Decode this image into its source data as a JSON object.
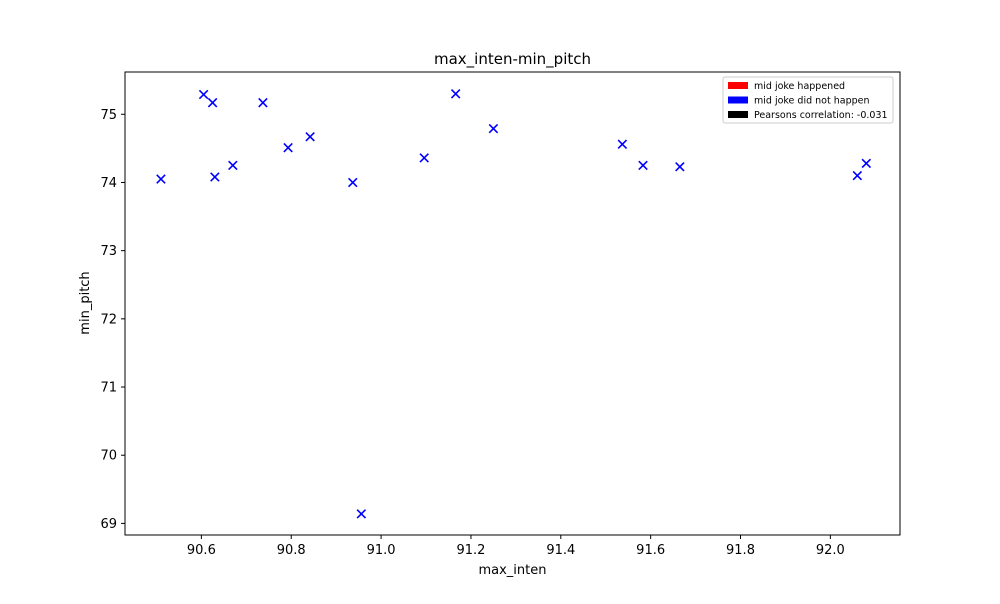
{
  "chart_data": {
    "type": "scatter",
    "title": "max_inten-min_pitch",
    "xlabel": "max_inten",
    "ylabel": "min_pitch",
    "xlim": [
      90.43,
      92.155
    ],
    "ylim": [
      68.83,
      75.62
    ],
    "x_ticks": [
      90.6,
      90.8,
      91.0,
      91.2,
      91.4,
      91.6,
      91.8,
      92.0
    ],
    "x_tick_labels": [
      "90.6",
      "90.8",
      "91.0",
      "91.2",
      "91.4",
      "91.6",
      "91.8",
      "92.0"
    ],
    "y_ticks": [
      69,
      70,
      71,
      72,
      73,
      74,
      75
    ],
    "y_tick_labels": [
      "69",
      "70",
      "71",
      "72",
      "73",
      "74",
      "75"
    ],
    "grid": false,
    "marker": "x",
    "legend_position": "top-right",
    "legend": [
      {
        "label": "mid joke happened",
        "color": "#ff0000"
      },
      {
        "label": "mid joke did not happen",
        "color": "#0000ff"
      },
      {
        "label": "Pearsons correlation: -0.031",
        "color": "#000000"
      }
    ],
    "series": [
      {
        "color": "#0000ff",
        "points": [
          {
            "x": 90.51,
            "y": 74.05
          },
          {
            "x": 90.605,
            "y": 75.29
          },
          {
            "x": 90.625,
            "y": 75.17
          },
          {
            "x": 90.63,
            "y": 74.08
          },
          {
            "x": 90.67,
            "y": 74.25
          },
          {
            "x": 90.737,
            "y": 75.17
          },
          {
            "x": 90.793,
            "y": 74.51
          },
          {
            "x": 90.842,
            "y": 74.67
          },
          {
            "x": 90.937,
            "y": 74.0
          },
          {
            "x": 90.956,
            "y": 69.14
          },
          {
            "x": 91.096,
            "y": 74.36
          },
          {
            "x": 91.166,
            "y": 75.3
          },
          {
            "x": 91.25,
            "y": 74.79
          },
          {
            "x": 91.537,
            "y": 74.56
          },
          {
            "x": 91.583,
            "y": 74.25
          },
          {
            "x": 91.665,
            "y": 74.23
          },
          {
            "x": 92.06,
            "y": 74.1
          },
          {
            "x": 92.08,
            "y": 74.28
          }
        ]
      }
    ]
  }
}
